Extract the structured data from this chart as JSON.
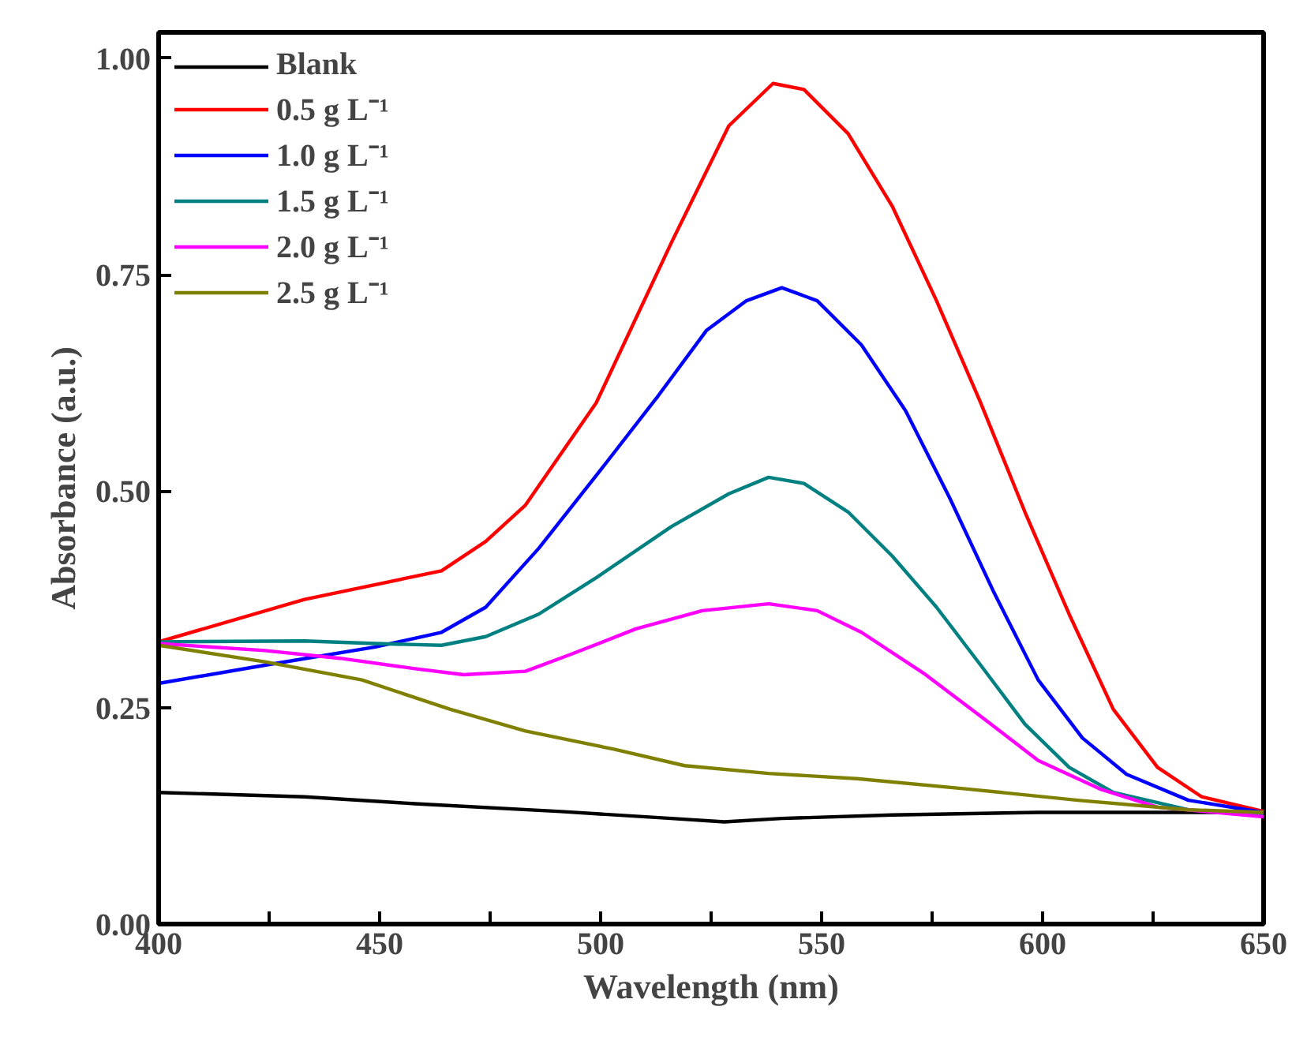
{
  "chart_data": {
    "type": "line",
    "xlabel": "Wavelength (nm)",
    "ylabel": "Absorbance (a.u.)",
    "xlim": [
      400,
      650
    ],
    "ylim": [
      0,
      1.03
    ],
    "xticks": [
      400,
      {
        "value": 425,
        "label": null
      },
      450,
      {
        "value": 475,
        "label": null
      },
      500,
      {
        "value": 525,
        "label": null
      },
      550,
      {
        "value": 575,
        "label": null
      },
      600,
      {
        "value": 625,
        "label": null
      },
      650
    ],
    "yticks": [
      {
        "value": 0,
        "label": "0.00"
      },
      {
        "value": 0.25,
        "label": "0.25"
      },
      {
        "value": 0.5,
        "label": "0.50"
      },
      {
        "value": 0.75,
        "label": "0.75"
      },
      {
        "value": 1.0,
        "label": "1.00"
      }
    ],
    "grid": false,
    "legend": "top left",
    "line_style": "solid",
    "marker": "none",
    "series": [
      {
        "name": "Blank",
        "color": "#000000",
        "x": [
          400,
          433,
          458,
          491,
          516,
          528,
          541,
          566,
          599,
          650
        ],
        "values": [
          0.152,
          0.147,
          0.139,
          0.13,
          0.122,
          0.118,
          0.122,
          0.126,
          0.129,
          0.129
        ]
      },
      {
        "name": "0.5 g L⁻¹",
        "color": "#ff0000",
        "x": [
          400,
          433,
          464,
          474,
          483,
          499,
          516,
          529,
          539,
          546,
          556,
          566,
          576,
          586,
          596,
          606,
          616,
          626,
          636,
          650
        ],
        "values": [
          0.326,
          0.375,
          0.408,
          0.442,
          0.484,
          0.602,
          0.787,
          0.922,
          0.971,
          0.964,
          0.913,
          0.829,
          0.72,
          0.602,
          0.476,
          0.358,
          0.248,
          0.181,
          0.147,
          0.13
        ]
      },
      {
        "name": "1.0 g L⁻¹",
        "color": "#0000ff",
        "x": [
          400,
          424,
          449,
          464,
          474,
          486,
          499,
          513,
          524,
          533,
          541,
          549,
          559,
          569,
          579,
          589,
          599,
          609,
          619,
          633,
          650
        ],
        "values": [
          0.278,
          0.299,
          0.32,
          0.337,
          0.366,
          0.434,
          0.518,
          0.61,
          0.686,
          0.72,
          0.735,
          0.72,
          0.669,
          0.593,
          0.492,
          0.383,
          0.282,
          0.215,
          0.173,
          0.143,
          0.129
        ]
      },
      {
        "name": "1.5 g L⁻¹",
        "color": "#008080",
        "x": [
          400,
          433,
          449,
          464,
          474,
          486,
          499,
          516,
          529,
          538,
          546,
          556,
          566,
          576,
          586,
          596,
          606,
          616,
          633,
          650
        ],
        "values": [
          0.326,
          0.327,
          0.324,
          0.322,
          0.332,
          0.358,
          0.4,
          0.459,
          0.497,
          0.516,
          0.509,
          0.476,
          0.425,
          0.366,
          0.299,
          0.231,
          0.181,
          0.152,
          0.132,
          0.126
        ]
      },
      {
        "name": "2.0 g L⁻¹",
        "color": "#ff00ff",
        "x": [
          400,
          424,
          441,
          458,
          469,
          483,
          493,
          508,
          523,
          538,
          549,
          559,
          573,
          586,
          599,
          613,
          626,
          650
        ],
        "values": [
          0.324,
          0.316,
          0.307,
          0.295,
          0.288,
          0.292,
          0.311,
          0.341,
          0.362,
          0.37,
          0.362,
          0.337,
          0.29,
          0.24,
          0.189,
          0.156,
          0.135,
          0.124
        ]
      },
      {
        "name": "2.5 g L⁻¹",
        "color": "#808000",
        "x": [
          400,
          424,
          446,
          466,
          483,
          503,
          519,
          538,
          558,
          583,
          608,
          633,
          650
        ],
        "values": [
          0.322,
          0.303,
          0.282,
          0.248,
          0.223,
          0.202,
          0.183,
          0.174,
          0.168,
          0.156,
          0.143,
          0.132,
          0.129
        ]
      }
    ]
  }
}
